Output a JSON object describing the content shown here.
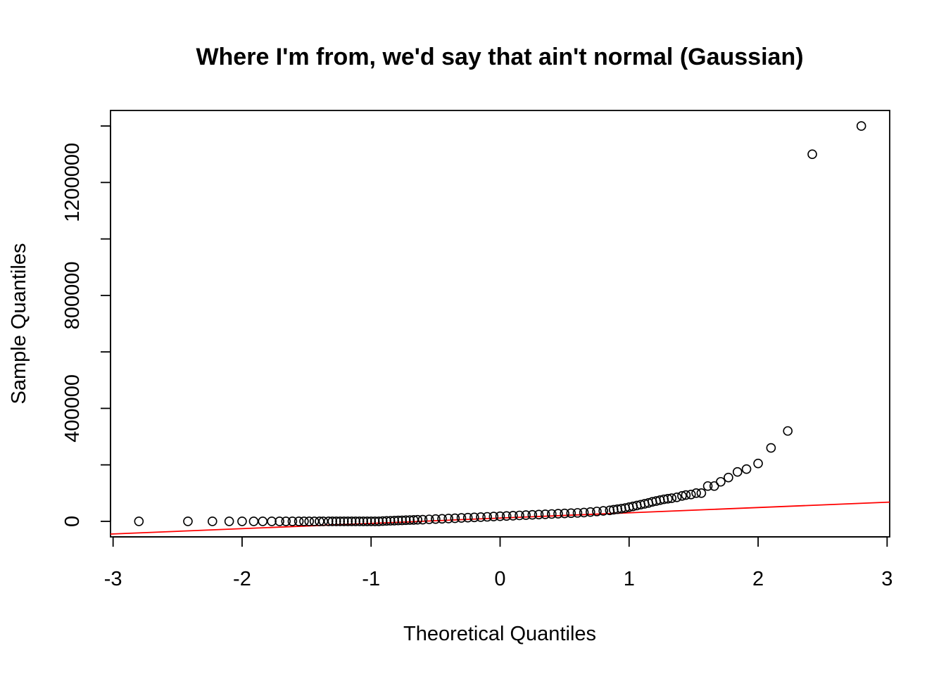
{
  "chart_data": {
    "type": "scatter",
    "title": "Where I'm from, we'd say that ain't normal (Gaussian)",
    "xlabel": "Theoretical Quantiles",
    "ylabel": "Sample Quantiles",
    "xlim": [
      -3.02,
      3.02
    ],
    "ylim": [
      -55000,
      1455000
    ],
    "x_ticks": [
      -3,
      -2,
      -1,
      0,
      1,
      2,
      3
    ],
    "y_ticks": [
      0,
      200000,
      400000,
      600000,
      800000,
      1000000,
      1200000,
      1400000
    ],
    "y_tick_labels": [
      "0",
      "",
      "400000",
      "",
      "800000",
      "",
      "1200000",
      ""
    ],
    "grid": false,
    "legend": "none",
    "marker": "open-circle",
    "colors": {
      "points": "#000000",
      "reference_line": "#ff0000",
      "frame": "#000000"
    },
    "reference_line": {
      "x": [
        -3.02,
        3.02
      ],
      "y": [
        -45000,
        68000
      ]
    },
    "points": {
      "x": [
        -2.8,
        -2.42,
        -2.23,
        -2.1,
        -2.0,
        -1.91,
        -1.84,
        -1.77,
        -1.71,
        -1.66,
        -1.61,
        -1.56,
        -1.52,
        -1.48,
        -1.44,
        -1.4,
        -1.37,
        -1.33,
        -1.3,
        -1.27,
        -1.24,
        -1.21,
        -1.18,
        -1.15,
        -1.12,
        -1.09,
        -1.06,
        -1.03,
        -1.0,
        -0.97,
        -0.94,
        -0.91,
        -0.88,
        -0.85,
        -0.82,
        -0.79,
        -0.76,
        -0.73,
        -0.7,
        -0.67,
        -0.64,
        -0.6,
        -0.55,
        -0.5,
        -0.45,
        -0.4,
        -0.35,
        -0.3,
        -0.25,
        -0.2,
        -0.15,
        -0.1,
        -0.05,
        0.0,
        0.05,
        0.1,
        0.15,
        0.2,
        0.25,
        0.3,
        0.35,
        0.4,
        0.45,
        0.5,
        0.55,
        0.6,
        0.65,
        0.7,
        0.75,
        0.8,
        0.85,
        0.88,
        0.91,
        0.94,
        0.97,
        1.0,
        1.03,
        1.06,
        1.09,
        1.12,
        1.15,
        1.18,
        1.21,
        1.24,
        1.27,
        1.3,
        1.33,
        1.37,
        1.41,
        1.44,
        1.48,
        1.52,
        1.56,
        1.61,
        1.66,
        1.71,
        1.77,
        1.84,
        1.91,
        2.0,
        2.1,
        2.23,
        2.42,
        2.8
      ],
      "y": [
        0,
        0,
        0,
        0,
        0,
        0,
        0,
        0,
        0,
        0,
        0,
        0,
        0,
        0,
        0,
        0,
        0,
        0,
        0,
        0,
        0,
        0,
        0,
        0,
        0,
        0,
        0,
        0,
        0,
        0,
        0,
        1000,
        1500,
        2000,
        2500,
        3000,
        3500,
        4000,
        4500,
        5000,
        5500,
        6000,
        7000,
        8000,
        9000,
        10000,
        11000,
        12000,
        13000,
        14000,
        15000,
        16000,
        17000,
        18000,
        19000,
        20000,
        21000,
        22000,
        23000,
        24000,
        25000,
        26000,
        27000,
        28000,
        29000,
        30000,
        31000,
        33000,
        35000,
        37000,
        39000,
        41000,
        43000,
        45000,
        47000,
        50000,
        53000,
        56000,
        59000,
        62000,
        65000,
        69000,
        72000,
        75000,
        78000,
        80000,
        82000,
        85000,
        90000,
        93000,
        95000,
        100000,
        100000,
        125000,
        125000,
        140000,
        155000,
        175000,
        185000,
        205000,
        260000,
        320000,
        1300000,
        1400000
      ]
    }
  }
}
